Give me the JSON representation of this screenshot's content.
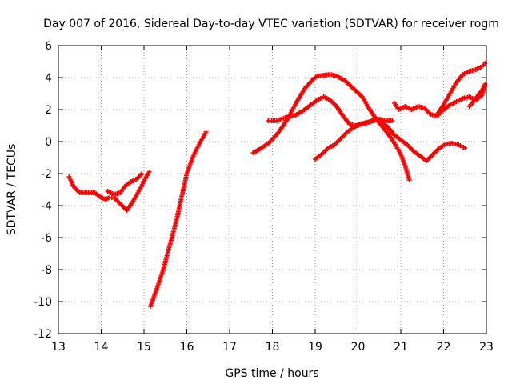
{
  "chart_data": {
    "type": "scatter",
    "title": "Day 007 of 2016, Sidereal Day-to-day VTEC variation (SDTVAR) for receiver rogm",
    "xlabel": "GPS time / hours",
    "ylabel": "SDTVAR / TECUs",
    "xlim": [
      13,
      23
    ],
    "ylim": [
      -12,
      6
    ],
    "xticks": [
      "13",
      "14",
      "15",
      "16",
      "17",
      "18",
      "19",
      "20",
      "21",
      "22",
      "23"
    ],
    "yticks": [
      "-12",
      "-10",
      "-8",
      "-6",
      "-4",
      "-2",
      "0",
      "2",
      "4",
      "6"
    ],
    "grid": true,
    "marker": "plus",
    "color": "#ff0000",
    "series": [
      {
        "x": [
          13.25,
          13.35,
          13.5,
          13.7,
          13.85,
          14.0,
          14.1,
          14.2,
          14.3,
          14.45,
          14.6,
          14.75,
          14.9,
          15.05,
          15.12
        ],
        "y": [
          -2.2,
          -2.8,
          -3.2,
          -3.2,
          -3.2,
          -3.5,
          -3.6,
          -3.5,
          -3.5,
          -3.9,
          -4.3,
          -3.7,
          -3.0,
          -2.2,
          -1.9
        ]
      },
      {
        "x": [
          14.15,
          14.3,
          14.45,
          14.55,
          14.7,
          14.85,
          14.95
        ],
        "y": [
          -3.1,
          -3.3,
          -3.2,
          -2.8,
          -2.5,
          -2.3,
          -2.0
        ]
      },
      {
        "x": [
          15.15,
          15.3,
          15.45,
          15.6,
          15.75,
          15.9,
          16.0,
          16.15,
          16.3,
          16.45
        ],
        "y": [
          -10.3,
          -9.2,
          -8.0,
          -6.5,
          -5.0,
          -3.2,
          -2.0,
          -0.9,
          -0.1,
          0.6
        ]
      },
      {
        "x": [
          17.55,
          17.75,
          17.95,
          18.15,
          18.35,
          18.55,
          18.75,
          18.95,
          19.05,
          19.2,
          19.35,
          19.5,
          19.7,
          19.9,
          20.1,
          20.25,
          20.4,
          20.55,
          20.7,
          20.85,
          21.0,
          21.1,
          21.2
        ],
        "y": [
          -0.7,
          -0.4,
          0.0,
          0.6,
          1.4,
          2.4,
          3.3,
          3.9,
          4.1,
          4.15,
          4.2,
          4.1,
          3.8,
          3.3,
          2.8,
          2.1,
          1.5,
          1.0,
          0.5,
          -0.1,
          -0.8,
          -1.5,
          -2.4
        ]
      },
      {
        "x": [
          17.9,
          18.1,
          18.3,
          18.5,
          18.7,
          18.9,
          19.05,
          19.2,
          19.35,
          19.5,
          19.65,
          19.8,
          19.95,
          20.1,
          20.25,
          20.4,
          20.55,
          20.7,
          20.85,
          21.0,
          21.15,
          21.3,
          21.45,
          21.6,
          21.75,
          21.9,
          22.05,
          22.2,
          22.35,
          22.5
        ],
        "y": [
          1.3,
          1.3,
          1.5,
          1.6,
          1.9,
          2.3,
          2.6,
          2.8,
          2.6,
          2.2,
          1.6,
          1.1,
          1.0,
          1.1,
          1.2,
          1.4,
          1.2,
          0.9,
          0.4,
          0.1,
          -0.2,
          -0.6,
          -0.9,
          -1.2,
          -0.8,
          -0.4,
          -0.15,
          -0.1,
          -0.2,
          -0.4
        ]
      },
      {
        "x": [
          19.0,
          19.15,
          19.3,
          19.45,
          19.6,
          19.75,
          19.9,
          20.05,
          20.2,
          20.35,
          20.5,
          20.65,
          20.8
        ],
        "y": [
          -1.1,
          -0.8,
          -0.4,
          -0.2,
          0.2,
          0.6,
          0.9,
          1.1,
          1.2,
          1.3,
          1.4,
          1.3,
          1.3
        ]
      },
      {
        "x": [
          20.85,
          20.95,
          21.1,
          21.25,
          21.4,
          21.55,
          21.7,
          21.85,
          22.0,
          22.15,
          22.3,
          22.45,
          22.6,
          22.75,
          22.9,
          22.97
        ],
        "y": [
          2.4,
          2.0,
          2.2,
          2.0,
          2.2,
          2.1,
          1.7,
          1.6,
          2.0,
          2.3,
          2.5,
          2.7,
          2.8,
          2.6,
          2.9,
          3.5
        ]
      },
      {
        "x": [
          21.85,
          22.0,
          22.15,
          22.3,
          22.45,
          22.6,
          22.75,
          22.9,
          22.97
        ],
        "y": [
          1.7,
          2.3,
          3.0,
          3.7,
          4.2,
          4.4,
          4.5,
          4.7,
          4.9
        ]
      },
      {
        "x": [
          22.6,
          22.7,
          22.8,
          22.9,
          22.97
        ],
        "y": [
          2.2,
          2.5,
          2.9,
          3.2,
          3.6
        ]
      }
    ]
  }
}
